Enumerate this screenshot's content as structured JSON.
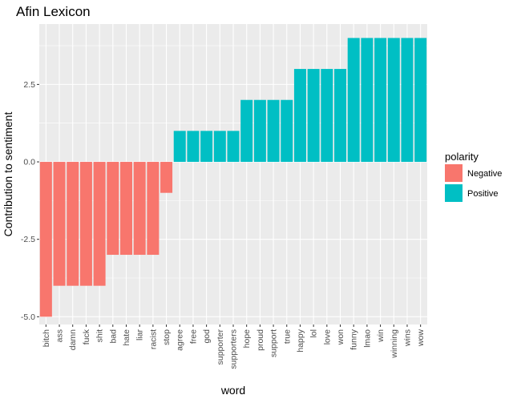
{
  "chart_data": {
    "type": "bar",
    "title": "Afin Lexicon",
    "xlabel": "word",
    "ylabel": "Contribution to sentiment",
    "ylim": [
      -5.25,
      4.45
    ],
    "y_ticks": [
      -5.0,
      -2.5,
      0.0,
      2.5
    ],
    "y_tick_labels": [
      "-5.0",
      "-2.5",
      "0.0",
      "2.5"
    ],
    "grid": true,
    "legend": {
      "title": "polarity",
      "position": "right",
      "entries": [
        {
          "label": "Negative",
          "color": "#F8766D"
        },
        {
          "label": "Positive",
          "color": "#00BFC4"
        }
      ]
    },
    "categories": [
      "bitch",
      "ass",
      "damn",
      "fuck",
      "shit",
      "bad",
      "hate",
      "liar",
      "racist",
      "stop",
      "agree",
      "free",
      "god",
      "supporter",
      "supporters",
      "hope",
      "proud",
      "support",
      "true",
      "happy",
      "lol",
      "love",
      "won",
      "funny",
      "lmao",
      "win",
      "winning",
      "wins",
      "wow"
    ],
    "values": [
      -5,
      -4,
      -4,
      -4,
      -4,
      -3,
      -3,
      -3,
      -3,
      -1,
      1,
      1,
      1,
      1,
      1,
      2,
      2,
      2,
      2,
      3,
      3,
      3,
      3,
      4,
      4,
      4,
      4,
      4,
      4
    ],
    "polarity": [
      "Negative",
      "Negative",
      "Negative",
      "Negative",
      "Negative",
      "Negative",
      "Negative",
      "Negative",
      "Negative",
      "Negative",
      "Positive",
      "Positive",
      "Positive",
      "Positive",
      "Positive",
      "Positive",
      "Positive",
      "Positive",
      "Positive",
      "Positive",
      "Positive",
      "Positive",
      "Positive",
      "Positive",
      "Positive",
      "Positive",
      "Positive",
      "Positive",
      "Positive"
    ],
    "colors": {
      "Negative": "#F8766D",
      "Positive": "#00BFC4",
      "panel": "#EBEBEB",
      "grid": "#FFFFFF"
    }
  }
}
